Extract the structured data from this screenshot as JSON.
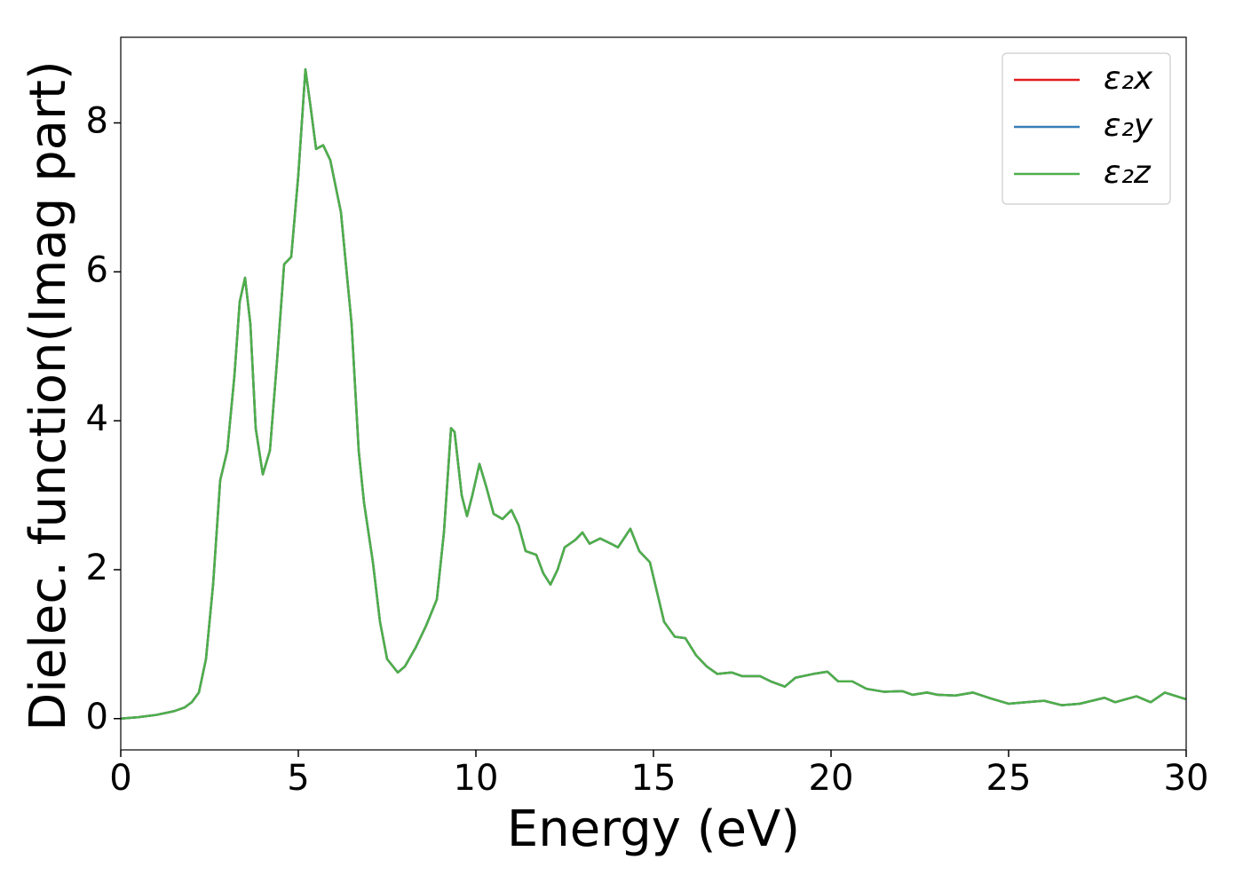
{
  "chart_data": {
    "type": "line",
    "xlabel": "Energy (eV)",
    "ylabel": "Dielec. function(Imag part)",
    "x": [
      0,
      0.5,
      1.0,
      1.5,
      1.8,
      2.0,
      2.2,
      2.4,
      2.6,
      2.8,
      3.0,
      3.2,
      3.35,
      3.5,
      3.65,
      3.8,
      4.0,
      4.2,
      4.4,
      4.6,
      4.8,
      5.0,
      5.2,
      5.35,
      5.5,
      5.7,
      5.9,
      6.2,
      6.5,
      6.7,
      6.85,
      7.1,
      7.3,
      7.5,
      7.8,
      8.0,
      8.3,
      8.6,
      8.9,
      9.1,
      9.3,
      9.4,
      9.6,
      9.75,
      9.9,
      10.1,
      10.3,
      10.5,
      10.75,
      11.0,
      11.2,
      11.4,
      11.7,
      11.9,
      12.1,
      12.3,
      12.5,
      12.8,
      13.0,
      13.2,
      13.5,
      13.8,
      14.0,
      14.35,
      14.6,
      14.9,
      15.1,
      15.3,
      15.6,
      15.9,
      16.2,
      16.5,
      16.8,
      17.2,
      17.5,
      18.0,
      18.3,
      18.7,
      19.0,
      19.5,
      19.9,
      20.2,
      20.6,
      21.0,
      21.5,
      22.0,
      22.3,
      22.7,
      23.0,
      23.5,
      24.0,
      24.5,
      25.0,
      25.5,
      26.0,
      26.5,
      27.0,
      27.7,
      28.0,
      28.6,
      29.0,
      29.4,
      30.0
    ],
    "series": [
      {
        "name": "ε₂x",
        "color": "#e41a1c",
        "values": [
          0,
          0.02,
          0.05,
          0.1,
          0.15,
          0.22,
          0.35,
          0.8,
          1.8,
          3.2,
          3.6,
          4.6,
          5.6,
          5.92,
          5.3,
          3.9,
          3.28,
          3.6,
          4.8,
          6.1,
          6.2,
          7.3,
          8.72,
          8.2,
          7.65,
          7.7,
          7.5,
          6.8,
          5.3,
          3.6,
          2.9,
          2.1,
          1.3,
          0.8,
          0.62,
          0.7,
          0.95,
          1.25,
          1.6,
          2.5,
          3.9,
          3.85,
          3.0,
          2.72,
          3.0,
          3.42,
          3.1,
          2.75,
          2.68,
          2.8,
          2.6,
          2.25,
          2.2,
          1.95,
          1.8,
          2.0,
          2.3,
          2.4,
          2.5,
          2.35,
          2.42,
          2.35,
          2.3,
          2.55,
          2.25,
          2.1,
          1.7,
          1.3,
          1.1,
          1.08,
          0.85,
          0.7,
          0.6,
          0.62,
          0.57,
          0.57,
          0.5,
          0.43,
          0.55,
          0.6,
          0.63,
          0.5,
          0.5,
          0.4,
          0.36,
          0.37,
          0.32,
          0.35,
          0.32,
          0.31,
          0.35,
          0.27,
          0.2,
          0.22,
          0.24,
          0.18,
          0.2,
          0.28,
          0.22,
          0.3,
          0.22,
          0.35,
          0.26
        ]
      },
      {
        "name": "ε₂y",
        "color": "#377eb8",
        "values": [
          0,
          0.02,
          0.05,
          0.1,
          0.15,
          0.22,
          0.35,
          0.8,
          1.8,
          3.2,
          3.6,
          4.6,
          5.6,
          5.92,
          5.3,
          3.9,
          3.28,
          3.6,
          4.8,
          6.1,
          6.2,
          7.3,
          8.72,
          8.2,
          7.65,
          7.7,
          7.5,
          6.8,
          5.3,
          3.6,
          2.9,
          2.1,
          1.3,
          0.8,
          0.62,
          0.7,
          0.95,
          1.25,
          1.6,
          2.5,
          3.9,
          3.85,
          3.0,
          2.72,
          3.0,
          3.42,
          3.1,
          2.75,
          2.68,
          2.8,
          2.6,
          2.25,
          2.2,
          1.95,
          1.8,
          2.0,
          2.3,
          2.4,
          2.5,
          2.35,
          2.42,
          2.35,
          2.3,
          2.55,
          2.25,
          2.1,
          1.7,
          1.3,
          1.1,
          1.08,
          0.85,
          0.7,
          0.6,
          0.62,
          0.57,
          0.57,
          0.5,
          0.43,
          0.55,
          0.6,
          0.63,
          0.5,
          0.5,
          0.4,
          0.36,
          0.37,
          0.32,
          0.35,
          0.32,
          0.31,
          0.35,
          0.27,
          0.2,
          0.22,
          0.24,
          0.18,
          0.2,
          0.28,
          0.22,
          0.3,
          0.22,
          0.35,
          0.26
        ]
      },
      {
        "name": "ε₂z",
        "color": "#4daf4a",
        "values": [
          0,
          0.02,
          0.05,
          0.1,
          0.15,
          0.22,
          0.35,
          0.8,
          1.8,
          3.2,
          3.6,
          4.6,
          5.6,
          5.92,
          5.3,
          3.9,
          3.28,
          3.6,
          4.8,
          6.1,
          6.2,
          7.3,
          8.72,
          8.2,
          7.65,
          7.7,
          7.5,
          6.8,
          5.3,
          3.6,
          2.9,
          2.1,
          1.3,
          0.8,
          0.62,
          0.7,
          0.95,
          1.25,
          1.6,
          2.5,
          3.9,
          3.85,
          3.0,
          2.72,
          3.0,
          3.42,
          3.1,
          2.75,
          2.68,
          2.8,
          2.6,
          2.25,
          2.2,
          1.95,
          1.8,
          2.0,
          2.3,
          2.4,
          2.5,
          2.35,
          2.42,
          2.35,
          2.3,
          2.55,
          2.25,
          2.1,
          1.7,
          1.3,
          1.1,
          1.08,
          0.85,
          0.7,
          0.6,
          0.62,
          0.57,
          0.57,
          0.5,
          0.43,
          0.55,
          0.6,
          0.63,
          0.5,
          0.5,
          0.4,
          0.36,
          0.37,
          0.32,
          0.35,
          0.32,
          0.31,
          0.35,
          0.27,
          0.2,
          0.22,
          0.24,
          0.18,
          0.2,
          0.28,
          0.22,
          0.3,
          0.22,
          0.35,
          0.26
        ]
      }
    ],
    "xlim": [
      0,
      30
    ],
    "xticks": [
      0,
      5,
      10,
      15,
      20,
      25,
      30
    ],
    "ylim": [
      -0.42,
      9.15
    ],
    "yticks": [
      0,
      2,
      4,
      6,
      8
    ],
    "grid": false,
    "legend": "upper right"
  }
}
